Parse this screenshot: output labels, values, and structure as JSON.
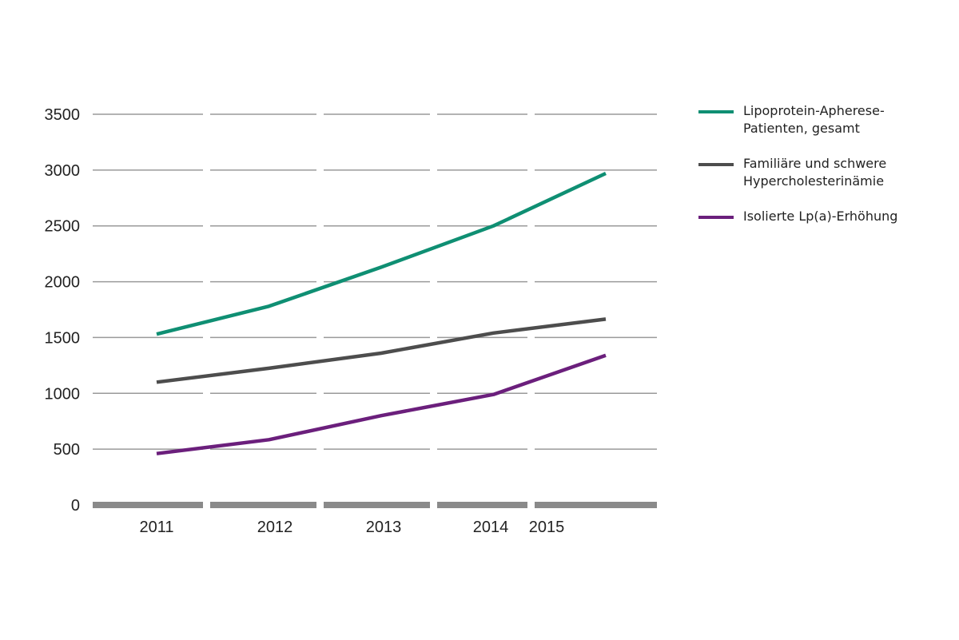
{
  "chart_data": {
    "type": "line",
    "categories": [
      "2011",
      "2012",
      "2013",
      "2014",
      "2015"
    ],
    "x_positions": [
      0.0,
      1.0,
      2.0,
      3.0,
      4.0
    ],
    "ylim": [
      0,
      3500
    ],
    "yticks": [
      0,
      500,
      1000,
      1500,
      2000,
      2500,
      3000,
      3500
    ],
    "grid": true,
    "legend_position": "right",
    "title": "",
    "xlabel": "",
    "ylabel": "",
    "series": [
      {
        "name": "Lipoprotein-Apherese-\nPatienten, gesamt",
        "name_lines": [
          "Lipoprotein-Apherese-",
          "Patienten, gesamt"
        ],
        "color": "#0f8f73",
        "x": [
          0.0,
          1.0,
          2.0,
          3.0,
          4.0
        ],
        "values": [
          1530,
          1780,
          2130,
          2500,
          2970
        ]
      },
      {
        "name": "Familiäre und schwere\nHypercholesterinämie",
        "name_lines": [
          "Familiäre und schwere",
          "Hypercholesterinämie"
        ],
        "color": "#4d4d4d",
        "x": [
          0.0,
          1.0,
          2.0,
          3.0,
          4.0
        ],
        "values": [
          1100,
          1225,
          1360,
          1540,
          1665
        ]
      },
      {
        "name": "Isolierte Lp(a)-Erhöhung",
        "name_lines": [
          "Isolierte Lp(a)-Erhöhung"
        ],
        "color": "#6b1f7c",
        "x": [
          0.0,
          1.0,
          2.0,
          3.0,
          4.0
        ],
        "values": [
          460,
          585,
          800,
          990,
          1340
        ]
      }
    ]
  }
}
